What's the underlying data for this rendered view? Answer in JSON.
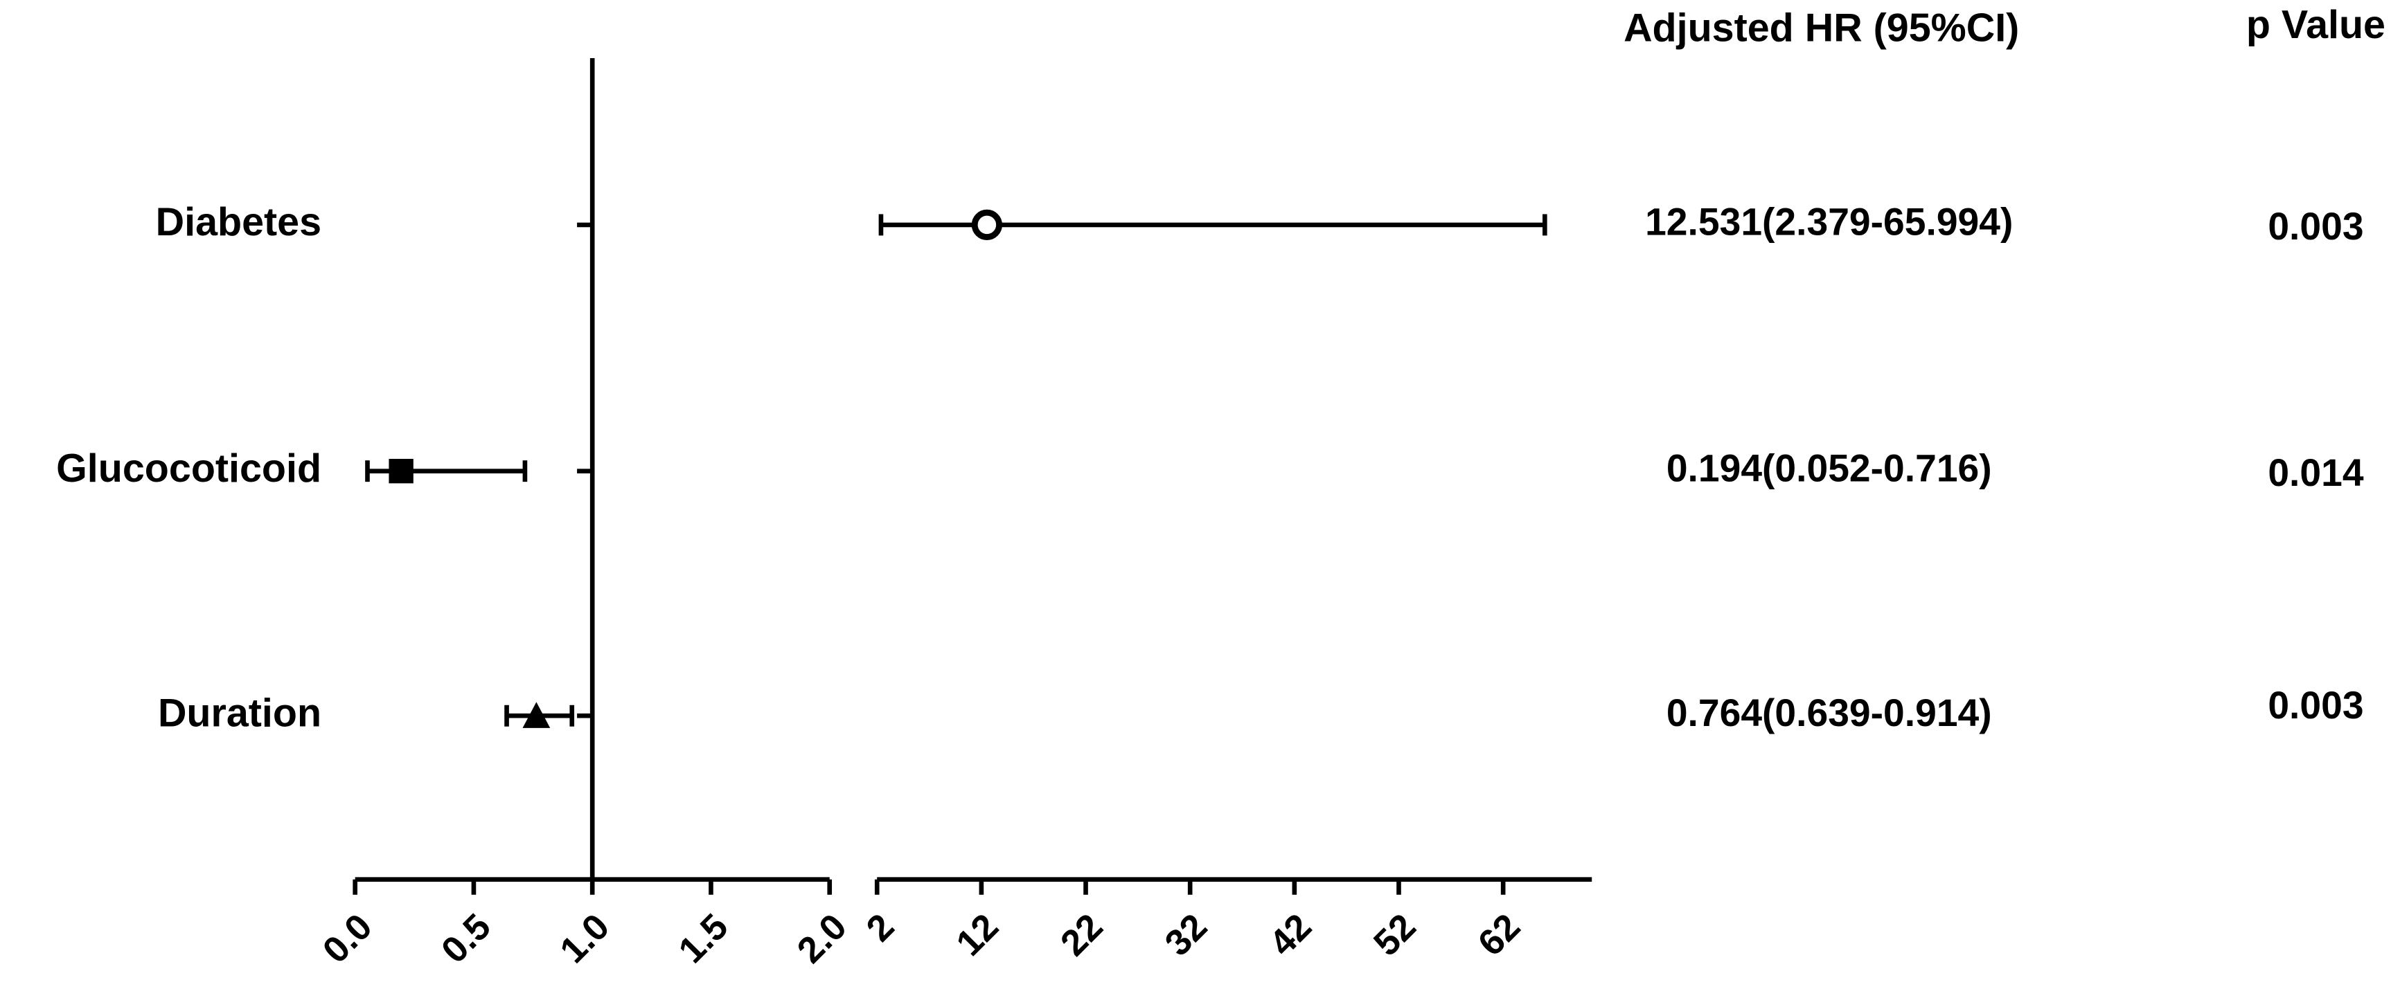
{
  "chart_data": {
    "type": "forest",
    "categories": [
      "Diabetes",
      "Glucocoticoid",
      "Duration"
    ],
    "values": [
      12.531,
      0.194,
      0.764
    ],
    "lower": [
      2.379,
      0.052,
      0.639
    ],
    "upper": [
      65.994,
      0.716,
      0.914
    ],
    "markers": [
      "circle",
      "square",
      "triangle"
    ],
    "color": "#000000",
    "reference_line": 1,
    "x_segments": [
      {
        "xlim": [
          0,
          2
        ],
        "xticks": [
          {
            "value": 0,
            "label": "0.0"
          },
          {
            "value": 0.5,
            "label": "0.5"
          },
          {
            "value": 1,
            "label": "1.0"
          },
          {
            "value": 1.5,
            "label": "1.5"
          },
          {
            "value": 2,
            "label": "2.0"
          }
        ]
      },
      {
        "xlim": [
          2,
          70.5
        ],
        "xticks": [
          2,
          12,
          22,
          32,
          42,
          52,
          62
        ]
      }
    ],
    "columns": [
      {
        "header": "Adjusted HR (95%CI)",
        "cells": [
          "12.531(2.379-65.994)",
          "0.194(0.052-0.716)",
          "0.764(0.639-0.914)"
        ]
      },
      {
        "header": "p Value",
        "cells": [
          "0.003",
          "0.014",
          "0.003"
        ]
      }
    ]
  }
}
